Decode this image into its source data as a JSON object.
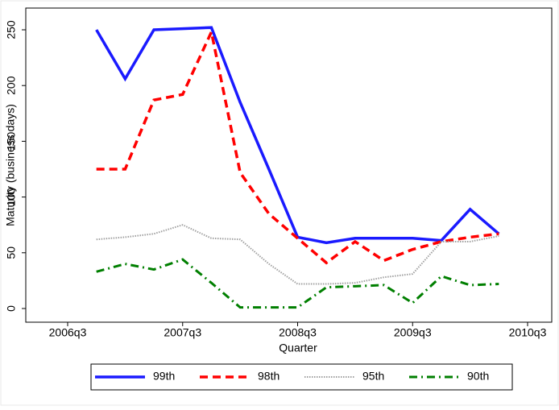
{
  "chart_data": {
    "type": "line",
    "x_label": "Quarter",
    "y_label": "Maturity (business days)",
    "x": [
      "2006q4",
      "2007q1",
      "2007q2",
      "2007q3",
      "2007q4",
      "2008q1",
      "2008q2",
      "2008q3",
      "2008q4",
      "2009q1",
      "2009q2",
      "2009q3",
      "2009q4",
      "2010q1",
      "2010q2"
    ],
    "series": [
      {
        "name": "99th",
        "color": "#1a1aff",
        "style": "solid",
        "values": [
          250,
          206,
          250,
          251,
          252,
          185,
          125,
          64,
          59,
          63,
          63,
          63,
          61,
          89,
          67
        ]
      },
      {
        "name": "98th",
        "color": "#ff0000",
        "style": "dashed",
        "values": [
          125,
          125,
          187,
          192,
          248,
          122,
          85,
          63,
          41,
          60,
          43,
          53,
          60,
          64,
          67
        ]
      },
      {
        "name": "95th",
        "color": "#a0a0a0",
        "style": "dotted",
        "values": [
          62,
          64,
          67,
          75,
          63,
          62,
          40,
          22,
          22,
          23,
          28,
          31,
          60,
          60,
          65
        ]
      },
      {
        "name": "90th",
        "color": "#007f00",
        "style": "dashdot",
        "values": [
          33,
          40,
          35,
          44,
          23,
          1,
          1,
          1,
          19,
          20,
          21,
          5,
          29,
          21,
          22
        ]
      }
    ],
    "xlim": [
      "2006q3",
      "2010q3"
    ],
    "xticks": [
      "2006q3",
      "2007q3",
      "2008q3",
      "2009q3",
      "2010q3"
    ],
    "ylim": [
      0,
      250
    ],
    "yticks": [
      0,
      50,
      100,
      150,
      200,
      250
    ],
    "grid": false,
    "legend": "bottom"
  }
}
